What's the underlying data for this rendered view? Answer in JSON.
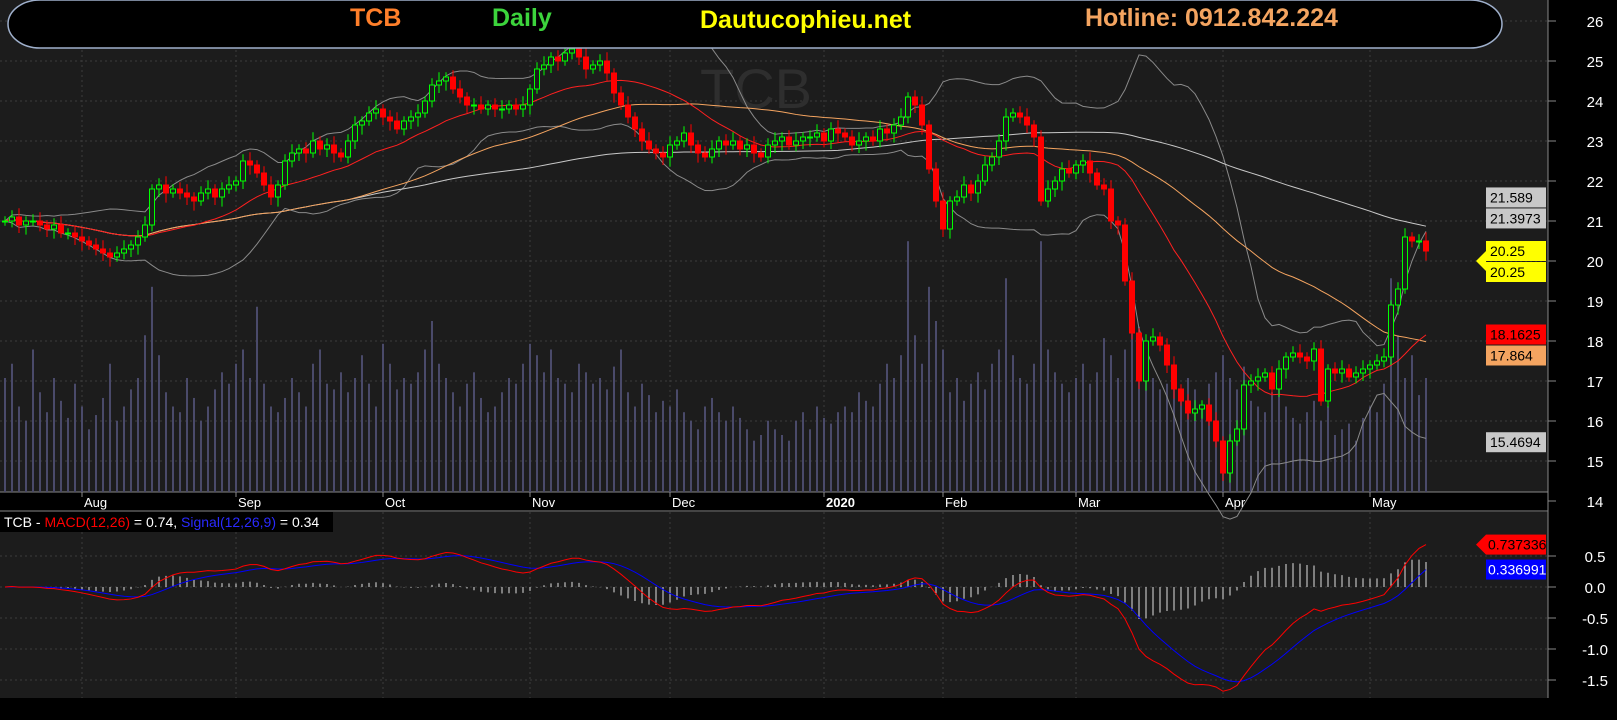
{
  "header": {
    "symbol": "TCB",
    "interval": "Daily",
    "site": "Dautucophieu.net",
    "hotline": "Hotline: 0912.842.224",
    "watermark": "TCB"
  },
  "colors": {
    "symbol": "#ff7f2a",
    "interval": "#3cd43c",
    "site": "#ffff00",
    "hotline": "#f4a460",
    "up_candle": "#00ff00",
    "down_candle": "#ff0000",
    "ma_short": "#ff2020",
    "ma_mid": "#f4a460",
    "ma_long": "#c8c8c8",
    "bollinger": "#8a8a8a",
    "volume": "#4a4a6a",
    "macd": "#ff0000",
    "signal": "#0000ff",
    "histogram": "#e0e0e0",
    "background": "#1c1c1c"
  },
  "chart_data": [
    {
      "type": "candlestick",
      "title": "TCB Daily",
      "ylim": [
        14,
        26
      ],
      "y_ticks": [
        14,
        15,
        16,
        17,
        18,
        19,
        20,
        21,
        22,
        23,
        24,
        25,
        26
      ],
      "grid": true,
      "x_month_labels": [
        {
          "label": "Aug",
          "index": 11
        },
        {
          "label": "Sep",
          "index": 33
        },
        {
          "label": "Oct",
          "index": 54
        },
        {
          "label": "Nov",
          "index": 75
        },
        {
          "label": "Dec",
          "index": 95
        },
        {
          "label": "2020",
          "index": 117,
          "bold": true
        },
        {
          "label": "Feb",
          "index": 134
        },
        {
          "label": "Mar",
          "index": 153
        },
        {
          "label": "Apr",
          "index": 174
        },
        {
          "label": "May",
          "index": 195
        }
      ],
      "close": [
        21.0,
        21.1,
        20.9,
        21.0,
        21.0,
        20.9,
        20.8,
        20.9,
        20.7,
        20.7,
        20.6,
        20.5,
        20.4,
        20.3,
        20.2,
        20.1,
        20.2,
        20.3,
        20.4,
        20.6,
        20.9,
        21.8,
        21.9,
        21.7,
        21.8,
        21.7,
        21.6,
        21.5,
        21.7,
        21.8,
        21.6,
        21.8,
        21.9,
        22.0,
        22.5,
        22.4,
        22.2,
        21.9,
        21.6,
        21.9,
        22.5,
        22.7,
        22.8,
        22.7,
        23.0,
        22.8,
        22.9,
        22.7,
        22.6,
        23.0,
        23.4,
        23.5,
        23.7,
        23.8,
        23.6,
        23.5,
        23.3,
        23.5,
        23.6,
        23.7,
        24.0,
        24.4,
        24.5,
        24.6,
        24.3,
        24.1,
        23.9,
        23.9,
        23.8,
        23.9,
        23.8,
        23.8,
        23.9,
        23.8,
        23.9,
        24.3,
        24.8,
        24.9,
        25.1,
        25.0,
        25.2,
        25.3,
        25.1,
        24.8,
        24.9,
        25.0,
        24.7,
        24.2,
        23.9,
        23.6,
        23.3,
        23.0,
        22.8,
        22.7,
        22.6,
        22.9,
        23.0,
        23.2,
        22.9,
        22.7,
        22.6,
        22.8,
        23.0,
        22.9,
        23.0,
        22.8,
        22.9,
        22.7,
        22.6,
        22.9,
        23.0,
        23.1,
        22.9,
        23.0,
        23.1,
        23.1,
        23.2,
        23.0,
        23.3,
        23.2,
        23.1,
        22.9,
        23.0,
        23.1,
        23.0,
        23.3,
        23.2,
        23.4,
        23.6,
        24.1,
        23.9,
        23.4,
        22.3,
        21.5,
        20.8,
        21.5,
        21.6,
        21.9,
        21.7,
        22.0,
        22.4,
        22.6,
        23.0,
        23.6,
        23.7,
        23.6,
        23.4,
        23.1,
        21.5,
        21.8,
        22.0,
        22.3,
        22.2,
        22.4,
        22.5,
        22.2,
        21.9,
        21.8,
        21.0,
        20.9,
        19.5,
        18.2,
        17.0,
        18.0,
        18.1,
        17.9,
        17.4,
        16.8,
        16.5,
        16.2,
        16.3,
        16.4,
        16.0,
        15.5,
        14.7,
        15.5,
        15.8,
        16.9,
        17.0,
        17.1,
        17.2,
        16.8,
        17.3,
        17.6,
        17.7,
        17.6,
        17.5,
        17.8,
        16.5,
        17.3,
        17.2,
        17.3,
        17.1,
        17.2,
        17.3,
        17.4,
        17.5,
        17.6,
        18.9,
        19.3,
        20.6,
        20.5,
        20.5,
        20.25
      ],
      "volume": [
        40,
        45,
        30,
        25,
        50,
        35,
        28,
        40,
        32,
        26,
        38,
        30,
        22,
        27,
        33,
        45,
        25,
        30,
        36,
        40,
        55,
        72,
        48,
        35,
        30,
        28,
        40,
        33,
        25,
        30,
        36,
        42,
        38,
        45,
        50,
        40,
        65,
        38,
        30,
        28,
        33,
        40,
        35,
        30,
        45,
        50,
        38,
        36,
        42,
        35,
        40,
        48,
        38,
        30,
        52,
        45,
        36,
        40,
        38,
        42,
        50,
        60,
        45,
        40,
        35,
        30,
        38,
        42,
        33,
        28,
        30,
        35,
        40,
        38,
        45,
        52,
        48,
        42,
        50,
        40,
        38,
        35,
        45,
        42,
        38,
        40,
        36,
        44,
        50,
        35,
        30,
        38,
        34,
        28,
        32,
        30,
        36,
        28,
        25,
        22,
        30,
        33,
        28,
        25,
        30,
        26,
        22,
        18,
        20,
        25,
        22,
        20,
        18,
        25,
        28,
        22,
        30,
        26,
        24,
        28,
        30,
        28,
        35,
        32,
        30,
        38,
        45,
        40,
        48,
        88,
        55,
        45,
        72,
        60,
        50,
        35,
        40,
        32,
        38,
        42,
        36,
        45,
        50,
        75,
        48,
        40,
        38,
        45,
        88,
        50,
        42,
        38,
        35,
        40,
        45,
        38,
        42,
        54,
        48,
        40,
        50,
        63,
        58,
        45,
        40,
        36,
        38,
        42,
        35,
        40,
        36,
        30,
        38,
        42,
        48,
        40,
        36,
        44,
        32,
        30,
        28,
        35,
        38,
        30,
        26,
        24,
        28,
        32,
        25,
        30,
        20,
        22,
        24,
        18,
        26,
        30,
        28,
        38,
        75,
        55,
        40,
        48,
        34,
        40
      ],
      "price_labels": [
        {
          "text": "21.589",
          "value": 21.589,
          "bg": "#c8c8c8",
          "fg": "#000"
        },
        {
          "text": "21.3973",
          "value": 21.3973,
          "bg": "#c8c8c8",
          "fg": "#000"
        },
        {
          "text": "20.25",
          "value": 20.25,
          "bg": "#ffff00",
          "fg": "#000"
        },
        {
          "text": "20.25",
          "value": 20.25,
          "bg": "#ffff00",
          "fg": "#000"
        },
        {
          "text": "18.1625",
          "value": 18.1625,
          "bg": "#ff0000",
          "fg": "#000"
        },
        {
          "text": "17.864",
          "value": 17.864,
          "bg": "#f4a460",
          "fg": "#000"
        },
        {
          "text": "15.4694",
          "value": 15.4694,
          "bg": "#c8c8c8",
          "fg": "#000"
        }
      ]
    },
    {
      "type": "line",
      "title_prefix": "TCB - ",
      "macd_label": "MACD(12,26)",
      "macd_value_text": " = 0.74, ",
      "signal_label": "Signal(12,26,9)",
      "signal_value_text": " = 0.34",
      "ylim": [
        -1.75,
        0.85
      ],
      "y_ticks": [
        0.5,
        0.0,
        -0.5,
        -1.0,
        -1.5
      ],
      "y_tick_labels": [
        "0.5",
        "0.0",
        "-0.5",
        "-1.0",
        "-1.5"
      ],
      "end_labels": [
        {
          "text": "0.737336",
          "bg": "#ff0000",
          "fg": "#000"
        },
        {
          "text": "0.336991",
          "bg": "#0000ff",
          "fg": "#fff"
        }
      ]
    }
  ]
}
